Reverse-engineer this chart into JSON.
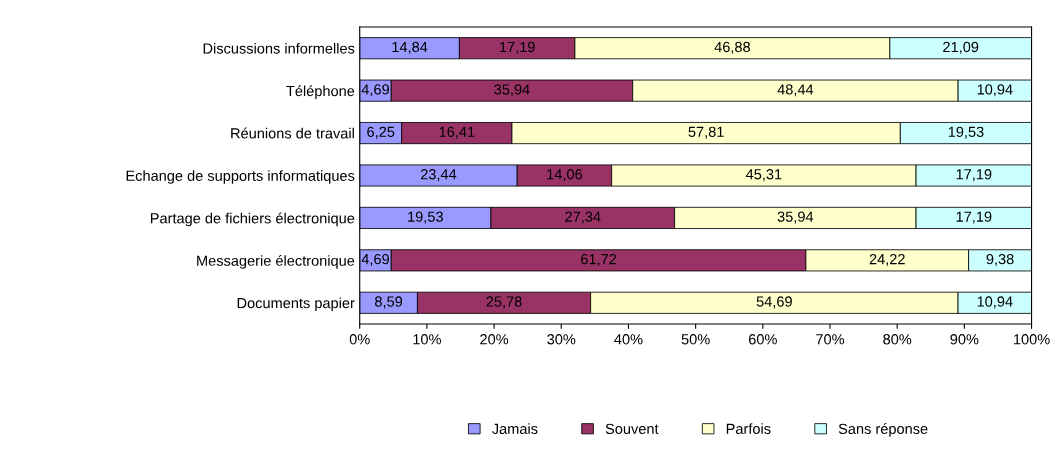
{
  "chart_data": {
    "type": "bar",
    "orientation": "horizontal",
    "stacked": true,
    "categories": [
      "Discussions informelles",
      "Téléphone",
      "Réunions de travail",
      "Echange de supports informatiques",
      "Partage de fichiers électronique",
      "Messagerie électronique",
      "Documents papier"
    ],
    "series": [
      {
        "name": "Jamais",
        "color": "#9999ff",
        "values": [
          14.84,
          4.69,
          6.25,
          23.44,
          19.53,
          4.69,
          8.59
        ],
        "value_labels": [
          "14,84",
          "4,69",
          "6,25",
          "23,44",
          "19,53",
          "4,69",
          "8,59"
        ]
      },
      {
        "name": "Souvent",
        "color": "#993366",
        "values": [
          17.19,
          35.94,
          16.41,
          14.06,
          27.34,
          61.72,
          25.78
        ],
        "value_labels": [
          "17,19",
          "35,94",
          "16,41",
          "14,06",
          "27,34",
          "61,72",
          "25,78"
        ]
      },
      {
        "name": "Parfois",
        "color": "#ffffcc",
        "values": [
          46.88,
          48.44,
          57.81,
          45.31,
          35.94,
          24.22,
          54.69
        ],
        "value_labels": [
          "46,88",
          "48,44",
          "57,81",
          "45,31",
          "35,94",
          "24,22",
          "54,69"
        ]
      },
      {
        "name": "Sans réponse",
        "color": "#ccffff",
        "values": [
          21.09,
          10.94,
          19.53,
          17.19,
          17.19,
          9.38,
          10.94
        ],
        "value_labels": [
          "21,09",
          "10,94",
          "19,53",
          "17,19",
          "17,19",
          "9,38",
          "10,94"
        ]
      }
    ],
    "xlim": [
      0,
      100
    ],
    "xticks": [
      {
        "value": 0,
        "label": "0%"
      },
      {
        "value": 10,
        "label": "10%"
      },
      {
        "value": 20,
        "label": "20%"
      },
      {
        "value": 30,
        "label": "30%"
      },
      {
        "value": 40,
        "label": "40%"
      },
      {
        "value": 50,
        "label": "50%"
      },
      {
        "value": 60,
        "label": "60%"
      },
      {
        "value": 70,
        "label": "70%"
      },
      {
        "value": 80,
        "label": "80%"
      },
      {
        "value": 90,
        "label": "90%"
      },
      {
        "value": 100,
        "label": "100%"
      }
    ],
    "grid": false,
    "legend": "bottom"
  }
}
